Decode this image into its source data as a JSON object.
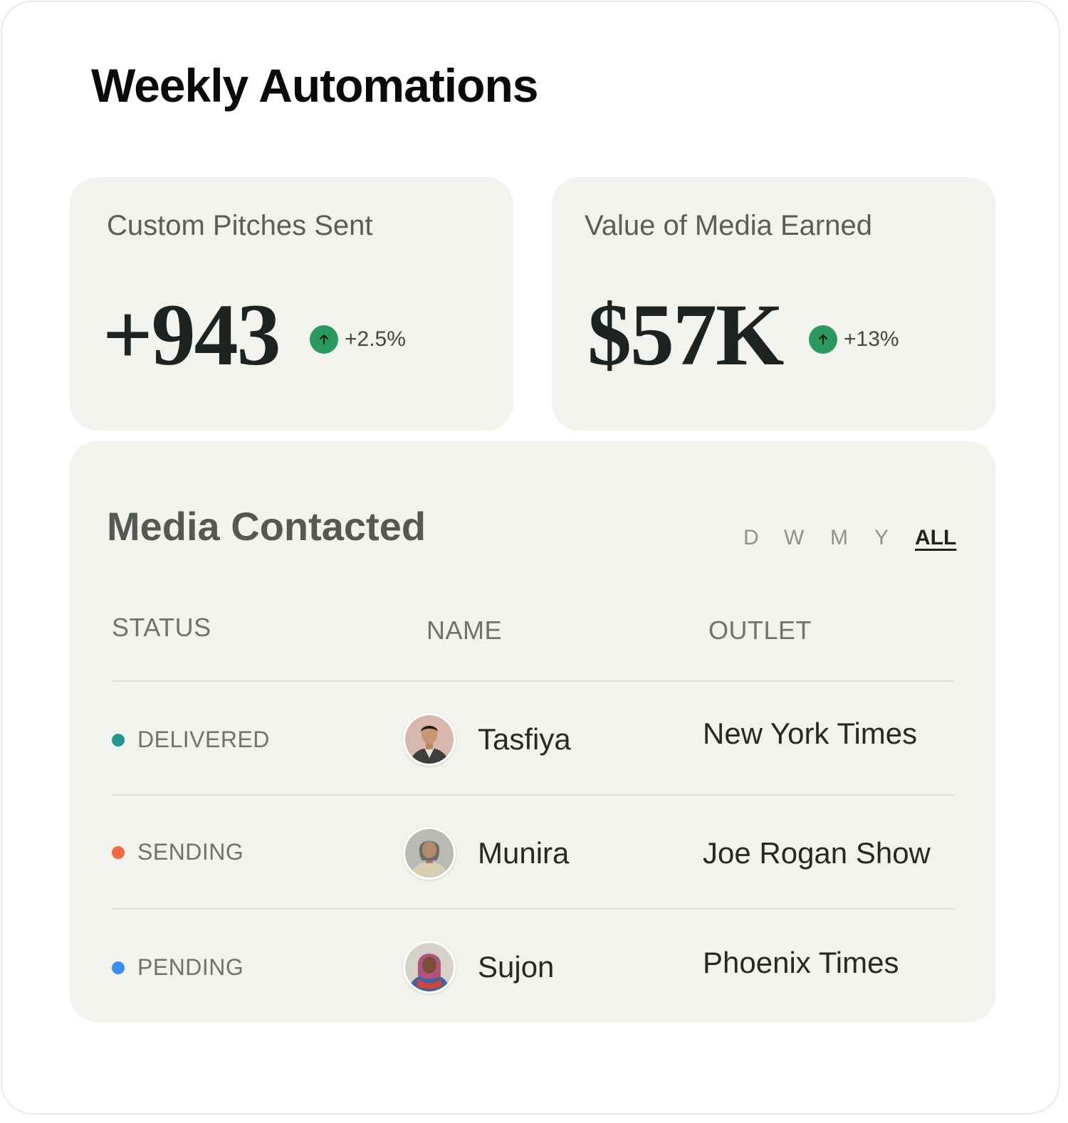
{
  "page": {
    "title": "Weekly Automations"
  },
  "stats": [
    {
      "label": "Custom Pitches Sent",
      "value": "+943",
      "trend": "+2.5%",
      "trend_icon": "arrow-up-icon",
      "trend_color": "#2a9a5c"
    },
    {
      "label": "Value of Media Earned",
      "value": "$57K",
      "trend": "+13%",
      "trend_icon": "arrow-up-icon",
      "trend_color": "#2a9a5c"
    }
  ],
  "media": {
    "title": "Media Contacted",
    "filters": [
      "D",
      "W",
      "M",
      "Y",
      "ALL"
    ],
    "active_filter": "ALL",
    "columns": [
      "STATUS",
      "NAME",
      "OUTLET"
    ],
    "rows": [
      {
        "status": "DELIVERED",
        "status_color": "#1e9a92",
        "name": "Tasfiya",
        "outlet": "New York Times",
        "avatar_icon": "avatar-man-icon"
      },
      {
        "status": "SENDING",
        "status_color": "#f26a3d",
        "name": "Munira",
        "outlet": "Joe Rogan Show",
        "avatar_icon": "avatar-older-woman-icon"
      },
      {
        "status": "PENDING",
        "status_color": "#3d8cf0",
        "name": "Sujon",
        "outlet": "Phoenix Times",
        "avatar_icon": "avatar-woman-hijab-icon"
      }
    ]
  }
}
